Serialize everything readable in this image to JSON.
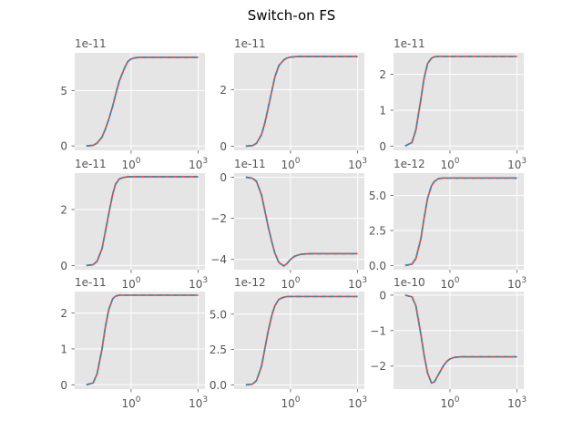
{
  "figure": {
    "title": "Switch-on FS"
  },
  "chart_data": [
    {
      "type": "line",
      "xscale": "log",
      "xlim": [
        0.003,
        2000
      ],
      "xticks": [
        1,
        1000
      ],
      "xticklabels": [
        "10^0",
        "10^3"
      ],
      "exponent_label": "1e-11",
      "ylim": [
        -0.4,
        8.4
      ],
      "yticks": [
        0,
        5
      ],
      "yticklabels": [
        "0",
        "5"
      ],
      "grid": true,
      "colors": [
        "#E24A33",
        "#348ABD"
      ],
      "x": [
        0.01,
        0.02,
        0.03,
        0.05,
        0.07,
        0.1,
        0.15,
        0.2,
        0.3,
        0.5,
        0.7,
        1,
        1.5,
        2,
        3,
        5,
        10,
        30,
        100,
        1000
      ],
      "series": [
        {
          "values": [
            0.0,
            0.05,
            0.25,
            0.8,
            1.5,
            2.4,
            3.6,
            4.6,
            5.9,
            7.0,
            7.6,
            7.85,
            7.95,
            7.98,
            8.0,
            8.0,
            8.0,
            8.0,
            8.0,
            8.0
          ],
          "style": "solid"
        },
        {
          "values": [
            0.0,
            0.05,
            0.25,
            0.8,
            1.5,
            2.4,
            3.6,
            4.6,
            5.9,
            7.0,
            7.6,
            7.85,
            7.95,
            7.98,
            8.0,
            8.0,
            8.0,
            8.0,
            8.0,
            8.0
          ],
          "style": "dashed"
        }
      ]
    },
    {
      "type": "line",
      "xscale": "log",
      "xlim": [
        0.003,
        2000
      ],
      "xticks": [
        1,
        1000
      ],
      "xticklabels": [
        "10^0",
        "10^3"
      ],
      "exponent_label": "1e-11",
      "ylim": [
        -0.15,
        3.3
      ],
      "yticks": [
        0,
        2
      ],
      "yticklabels": [
        "0",
        "2"
      ],
      "grid": true,
      "colors": [
        "#E24A33",
        "#348ABD"
      ],
      "x": [
        0.01,
        0.02,
        0.03,
        0.05,
        0.07,
        0.1,
        0.15,
        0.2,
        0.3,
        0.5,
        0.7,
        1,
        1.5,
        2,
        3,
        5,
        10,
        30,
        100,
        1000
      ],
      "series": [
        {
          "values": [
            0.0,
            0.02,
            0.1,
            0.4,
            0.8,
            1.35,
            2.0,
            2.45,
            2.85,
            3.05,
            3.12,
            3.15,
            3.16,
            3.17,
            3.17,
            3.17,
            3.17,
            3.17,
            3.17,
            3.17
          ],
          "style": "solid"
        },
        {
          "values": [
            0.0,
            0.02,
            0.1,
            0.4,
            0.8,
            1.35,
            2.0,
            2.45,
            2.85,
            3.05,
            3.12,
            3.15,
            3.16,
            3.17,
            3.17,
            3.17,
            3.17,
            3.17,
            3.17,
            3.17
          ],
          "style": "dashed"
        }
      ]
    },
    {
      "type": "line",
      "xscale": "log",
      "xlim": [
        0.003,
        2000
      ],
      "xticks": [
        1,
        1000
      ],
      "xticklabels": [
        "10^0",
        "10^3"
      ],
      "exponent_label": "1e-11",
      "ylim": [
        -0.12,
        2.6
      ],
      "yticks": [
        0,
        1,
        2
      ],
      "yticklabels": [
        "0",
        "1",
        "2"
      ],
      "grid": true,
      "colors": [
        "#E24A33",
        "#348ABD"
      ],
      "x": [
        0.01,
        0.02,
        0.03,
        0.05,
        0.07,
        0.1,
        0.15,
        0.2,
        0.3,
        0.5,
        0.7,
        1,
        1.5,
        2,
        3,
        5,
        10,
        30,
        100,
        1000
      ],
      "series": [
        {
          "values": [
            0.0,
            0.1,
            0.45,
            1.3,
            1.9,
            2.3,
            2.45,
            2.49,
            2.5,
            2.5,
            2.5,
            2.5,
            2.5,
            2.5,
            2.5,
            2.5,
            2.5,
            2.5,
            2.5,
            2.5
          ],
          "style": "solid"
        },
        {
          "values": [
            0.0,
            0.1,
            0.45,
            1.3,
            1.9,
            2.3,
            2.45,
            2.49,
            2.5,
            2.5,
            2.5,
            2.5,
            2.5,
            2.5,
            2.5,
            2.5,
            2.5,
            2.5,
            2.5,
            2.5
          ],
          "style": "dashed"
        }
      ]
    },
    {
      "type": "line",
      "xscale": "log",
      "xlim": [
        0.003,
        2000
      ],
      "xticks": [
        1,
        1000
      ],
      "xticklabels": [
        "10^0",
        "10^3"
      ],
      "exponent_label": "1e-11",
      "ylim": [
        -0.15,
        3.3
      ],
      "yticks": [
        0,
        2
      ],
      "yticklabels": [
        "0",
        "2"
      ],
      "grid": true,
      "colors": [
        "#E24A33",
        "#348ABD"
      ],
      "x": [
        0.01,
        0.02,
        0.03,
        0.05,
        0.07,
        0.1,
        0.15,
        0.2,
        0.3,
        0.5,
        0.7,
        1,
        1.5,
        2,
        3,
        5,
        10,
        30,
        100,
        1000
      ],
      "series": [
        {
          "values": [
            0.0,
            0.03,
            0.15,
            0.6,
            1.2,
            1.85,
            2.55,
            2.9,
            3.1,
            3.15,
            3.17,
            3.17,
            3.17,
            3.17,
            3.17,
            3.17,
            3.17,
            3.17,
            3.17,
            3.17
          ],
          "style": "solid"
        },
        {
          "values": [
            0.0,
            0.03,
            0.15,
            0.6,
            1.2,
            1.85,
            2.55,
            2.9,
            3.1,
            3.15,
            3.17,
            3.17,
            3.17,
            3.17,
            3.17,
            3.17,
            3.17,
            3.17,
            3.17,
            3.17
          ],
          "style": "dashed"
        }
      ]
    },
    {
      "type": "line",
      "xscale": "log",
      "xlim": [
        0.003,
        2000
      ],
      "xticks": [
        1,
        1000
      ],
      "xticklabels": [
        "10^0",
        "10^3"
      ],
      "exponent_label": "1e-11",
      "ylim": [
        -4.5,
        0.2
      ],
      "yticks": [
        0,
        -2,
        -4
      ],
      "yticklabels": [
        "0",
        "−2",
        "−4"
      ],
      "grid": true,
      "colors": [
        "#E24A33",
        "#348ABD"
      ],
      "x": [
        0.01,
        0.02,
        0.03,
        0.05,
        0.07,
        0.1,
        0.15,
        0.2,
        0.3,
        0.5,
        0.7,
        1,
        1.5,
        2,
        3,
        5,
        10,
        30,
        100,
        1000
      ],
      "series": [
        {
          "values": [
            0.0,
            -0.05,
            -0.2,
            -0.85,
            -1.6,
            -2.4,
            -3.2,
            -3.7,
            -4.15,
            -4.32,
            -4.2,
            -4.0,
            -3.85,
            -3.8,
            -3.75,
            -3.73,
            -3.72,
            -3.72,
            -3.72,
            -3.72
          ],
          "style": "solid"
        },
        {
          "values": [
            0.0,
            -0.05,
            -0.2,
            -0.85,
            -1.6,
            -2.4,
            -3.2,
            -3.7,
            -4.15,
            -4.32,
            -4.2,
            -4.0,
            -3.85,
            -3.8,
            -3.75,
            -3.73,
            -3.72,
            -3.72,
            -3.72,
            -3.72
          ],
          "style": "dashed"
        }
      ]
    },
    {
      "type": "line",
      "xscale": "log",
      "xlim": [
        0.003,
        2000
      ],
      "xticks": [
        1,
        1000
      ],
      "xticklabels": [
        "10^0",
        "10^3"
      ],
      "exponent_label": "1e-12",
      "ylim": [
        -0.3,
        6.6
      ],
      "yticks": [
        0,
        2.5,
        5
      ],
      "yticklabels": [
        "0.0",
        "2.5",
        "5.0"
      ],
      "grid": true,
      "colors": [
        "#E24A33",
        "#348ABD"
      ],
      "x": [
        0.01,
        0.02,
        0.03,
        0.05,
        0.07,
        0.1,
        0.15,
        0.2,
        0.3,
        0.5,
        0.7,
        1,
        1.5,
        2,
        3,
        5,
        10,
        30,
        100,
        1000
      ],
      "series": [
        {
          "values": [
            0.0,
            0.1,
            0.5,
            1.9,
            3.4,
            4.8,
            5.7,
            6.0,
            6.2,
            6.25,
            6.25,
            6.25,
            6.25,
            6.25,
            6.25,
            6.25,
            6.25,
            6.25,
            6.25,
            6.25
          ],
          "style": "solid"
        },
        {
          "values": [
            0.0,
            0.1,
            0.5,
            1.9,
            3.4,
            4.8,
            5.7,
            6.0,
            6.2,
            6.25,
            6.25,
            6.25,
            6.25,
            6.25,
            6.25,
            6.25,
            6.25,
            6.25,
            6.25,
            6.25
          ],
          "style": "dashed"
        }
      ]
    },
    {
      "type": "line",
      "xscale": "log",
      "xlim": [
        0.003,
        2000
      ],
      "xticks": [
        1,
        1000
      ],
      "xticklabels": [
        "10^0",
        "10^3"
      ],
      "exponent_label": "1e-11",
      "ylim": [
        -0.12,
        2.6
      ],
      "yticks": [
        0,
        1,
        2
      ],
      "yticklabels": [
        "0",
        "1",
        "2"
      ],
      "grid": true,
      "colors": [
        "#E24A33",
        "#348ABD"
      ],
      "x": [
        0.01,
        0.02,
        0.03,
        0.05,
        0.07,
        0.1,
        0.15,
        0.2,
        0.3,
        0.5,
        0.7,
        1,
        1.5,
        2,
        3,
        5,
        10,
        30,
        100,
        1000
      ],
      "series": [
        {
          "values": [
            0.0,
            0.05,
            0.3,
            1.0,
            1.6,
            2.1,
            2.4,
            2.47,
            2.5,
            2.5,
            2.5,
            2.5,
            2.5,
            2.5,
            2.5,
            2.5,
            2.5,
            2.5,
            2.5,
            2.5
          ],
          "style": "solid"
        },
        {
          "values": [
            0.0,
            0.05,
            0.3,
            1.0,
            1.6,
            2.1,
            2.4,
            2.47,
            2.5,
            2.5,
            2.5,
            2.5,
            2.5,
            2.5,
            2.5,
            2.5,
            2.5,
            2.5,
            2.5,
            2.5
          ],
          "style": "dashed"
        }
      ]
    },
    {
      "type": "line",
      "xscale": "log",
      "xlim": [
        0.003,
        2000
      ],
      "xticks": [
        1,
        1000
      ],
      "xticklabels": [
        "10^0",
        "10^3"
      ],
      "exponent_label": "1e-12",
      "ylim": [
        -0.3,
        6.6
      ],
      "yticks": [
        0,
        2.5,
        5
      ],
      "yticklabels": [
        "0.0",
        "2.5",
        "5.0"
      ],
      "grid": true,
      "colors": [
        "#E24A33",
        "#348ABD"
      ],
      "x": [
        0.01,
        0.02,
        0.03,
        0.05,
        0.07,
        0.1,
        0.15,
        0.2,
        0.3,
        0.5,
        0.7,
        1,
        1.5,
        2,
        3,
        5,
        10,
        30,
        100,
        1000
      ],
      "series": [
        {
          "values": [
            0.0,
            0.05,
            0.3,
            1.3,
            2.5,
            3.8,
            5.0,
            5.6,
            6.05,
            6.2,
            6.25,
            6.25,
            6.25,
            6.25,
            6.25,
            6.25,
            6.25,
            6.25,
            6.25,
            6.25
          ],
          "style": "solid"
        },
        {
          "values": [
            0.0,
            0.05,
            0.3,
            1.3,
            2.5,
            3.8,
            5.0,
            5.6,
            6.05,
            6.2,
            6.25,
            6.25,
            6.25,
            6.25,
            6.25,
            6.25,
            6.25,
            6.25,
            6.25,
            6.25
          ],
          "style": "dashed"
        }
      ]
    },
    {
      "type": "line",
      "xscale": "log",
      "xlim": [
        0.003,
        2000
      ],
      "xticks": [
        1,
        1000
      ],
      "xticklabels": [
        "10^0",
        "10^3"
      ],
      "exponent_label": "1e-10",
      "ylim": [
        -2.65,
        0.1
      ],
      "yticks": [
        0,
        -1,
        -2
      ],
      "yticklabels": [
        "0",
        "−1",
        "−2"
      ],
      "grid": true,
      "colors": [
        "#E24A33",
        "#348ABD"
      ],
      "x": [
        0.01,
        0.02,
        0.03,
        0.05,
        0.07,
        0.1,
        0.15,
        0.2,
        0.3,
        0.5,
        0.7,
        1,
        1.5,
        2,
        3,
        5,
        10,
        30,
        100,
        1000
      ],
      "series": [
        {
          "values": [
            0.0,
            -0.05,
            -0.3,
            -1.1,
            -1.7,
            -2.2,
            -2.48,
            -2.45,
            -2.25,
            -2.0,
            -1.88,
            -1.8,
            -1.76,
            -1.75,
            -1.74,
            -1.74,
            -1.74,
            -1.74,
            -1.74,
            -1.74
          ],
          "style": "solid"
        },
        {
          "values": [
            0.0,
            -0.05,
            -0.3,
            -1.1,
            -1.7,
            -2.2,
            -2.48,
            -2.45,
            -2.25,
            -2.0,
            -1.88,
            -1.8,
            -1.76,
            -1.75,
            -1.74,
            -1.74,
            -1.74,
            -1.74,
            -1.74,
            -1.74
          ],
          "style": "dashed"
        }
      ]
    }
  ]
}
